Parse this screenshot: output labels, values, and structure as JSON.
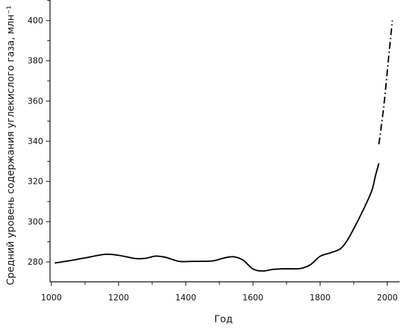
{
  "chart_data": {
    "type": "line",
    "title": "",
    "xlabel": "Год",
    "ylabel": "Средний уровень содержания углекислого газа, млн⁻¹",
    "xlim": [
      1000,
      2050
    ],
    "ylim": [
      270,
      410
    ],
    "x_ticks": [
      1000,
      1200,
      1400,
      1600,
      1800,
      2000
    ],
    "x_tick_labels": [
      "1000",
      "1200",
      "1400",
      "1600",
      "1800",
      "2000"
    ],
    "y_ticks": [
      280,
      300,
      320,
      340,
      360,
      380,
      400
    ],
    "y_tick_labels": [
      "280",
      "300",
      "320",
      "340",
      "360",
      "380",
      "400"
    ],
    "grid": false,
    "legend": "none",
    "series": [
      {
        "style": "solid",
        "color": "#000000",
        "points": [
          [
            1010,
            279.5
          ],
          [
            1050,
            280.5
          ],
          [
            1100,
            282
          ],
          [
            1160,
            283.8
          ],
          [
            1200,
            283.3
          ],
          [
            1250,
            281.7
          ],
          [
            1280,
            281.8
          ],
          [
            1310,
            282.9
          ],
          [
            1340,
            282.3
          ],
          [
            1380,
            280.3
          ],
          [
            1420,
            280.3
          ],
          [
            1480,
            280.5
          ],
          [
            1510,
            281.8
          ],
          [
            1540,
            282.6
          ],
          [
            1570,
            281
          ],
          [
            1600,
            276.5
          ],
          [
            1630,
            275.5
          ],
          [
            1660,
            276.3
          ],
          [
            1700,
            276.6
          ],
          [
            1740,
            276.7
          ],
          [
            1770,
            278.5
          ],
          [
            1800,
            282.8
          ],
          [
            1830,
            284.5
          ],
          [
            1860,
            286.5
          ],
          [
            1880,
            290.5
          ],
          [
            1900,
            296.5
          ],
          [
            1920,
            303
          ],
          [
            1940,
            310
          ],
          [
            1955,
            316
          ],
          [
            1965,
            323
          ],
          [
            1975,
            329
          ]
        ]
      },
      {
        "style": "dash-dot",
        "color": "#000000",
        "points": [
          [
            1975,
            338.5
          ],
          [
            1990,
            358
          ],
          [
            2003,
            380
          ],
          [
            2015,
            400
          ]
        ]
      }
    ]
  }
}
